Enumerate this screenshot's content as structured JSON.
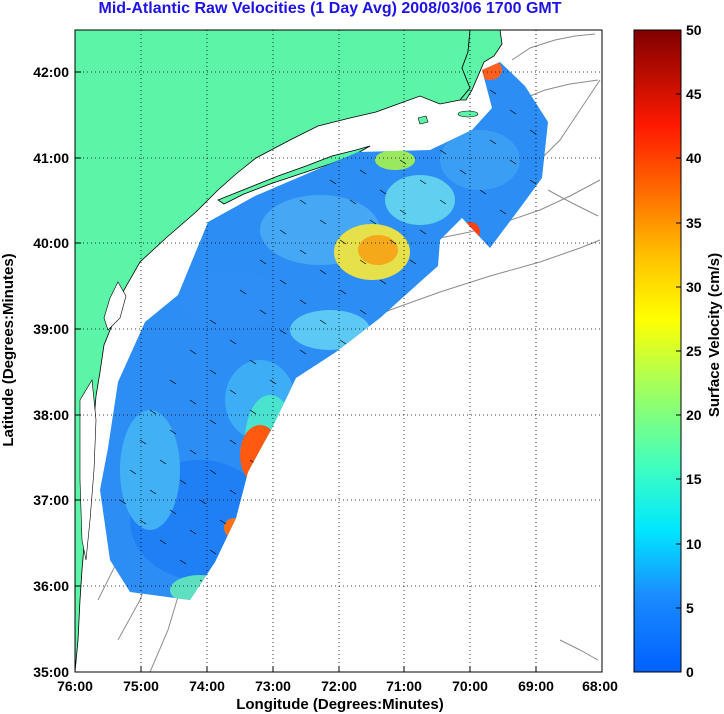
{
  "title": "Mid-Atlantic Raw Velocities (1 Day Avg) 2008/03/06 1700 GMT",
  "chart_data": {
    "type": "heatmap",
    "title": "Mid-Atlantic Raw Velocities (1 Day Avg) 2008/03/06 1700 GMT",
    "xlabel": "Longitude (Degrees:Minutes)",
    "ylabel": "Latitude (Degrees:Minutes)",
    "xlim": [
      -76,
      -68
    ],
    "ylim": [
      35,
      42.5
    ],
    "x_ticks": [
      "76:00",
      "75:00",
      "74:00",
      "73:00",
      "72:00",
      "71:00",
      "70:00",
      "69:00",
      "68:00"
    ],
    "y_ticks": [
      "35:00",
      "36:00",
      "37:00",
      "38:00",
      "39:00",
      "40:00",
      "41:00",
      "42:00"
    ],
    "grid": true,
    "colorbar": {
      "label": "Surface Velocity (cm/s)",
      "range": [
        0,
        50
      ],
      "ticks": [
        "0",
        "5",
        "10",
        "15",
        "20",
        "25",
        "30",
        "35",
        "40",
        "45",
        "50"
      ],
      "colormap": "jet"
    },
    "colors": {
      "land": "#5cf5a8",
      "ocean_background": "#ffffff",
      "bathymetry_contours": "#8c8c8c",
      "vectors": "#000000",
      "title": "#1f12e6"
    },
    "features": {
      "high_speed_regions": [
        {
          "lon": -72.8,
          "lat": 37.4,
          "speed_cm_s": 38
        },
        {
          "lon": -73.5,
          "lat": 36.7,
          "speed_cm_s": 35
        },
        {
          "lon": -71.4,
          "lat": 39.9,
          "speed_cm_s": 27
        },
        {
          "lon": -70.1,
          "lat": 40.1,
          "speed_cm_s": 38
        },
        {
          "lon": -69.6,
          "lat": 42.05,
          "speed_cm_s": 34
        }
      ],
      "typical_speed_cm_s": [
        3,
        12
      ]
    }
  }
}
